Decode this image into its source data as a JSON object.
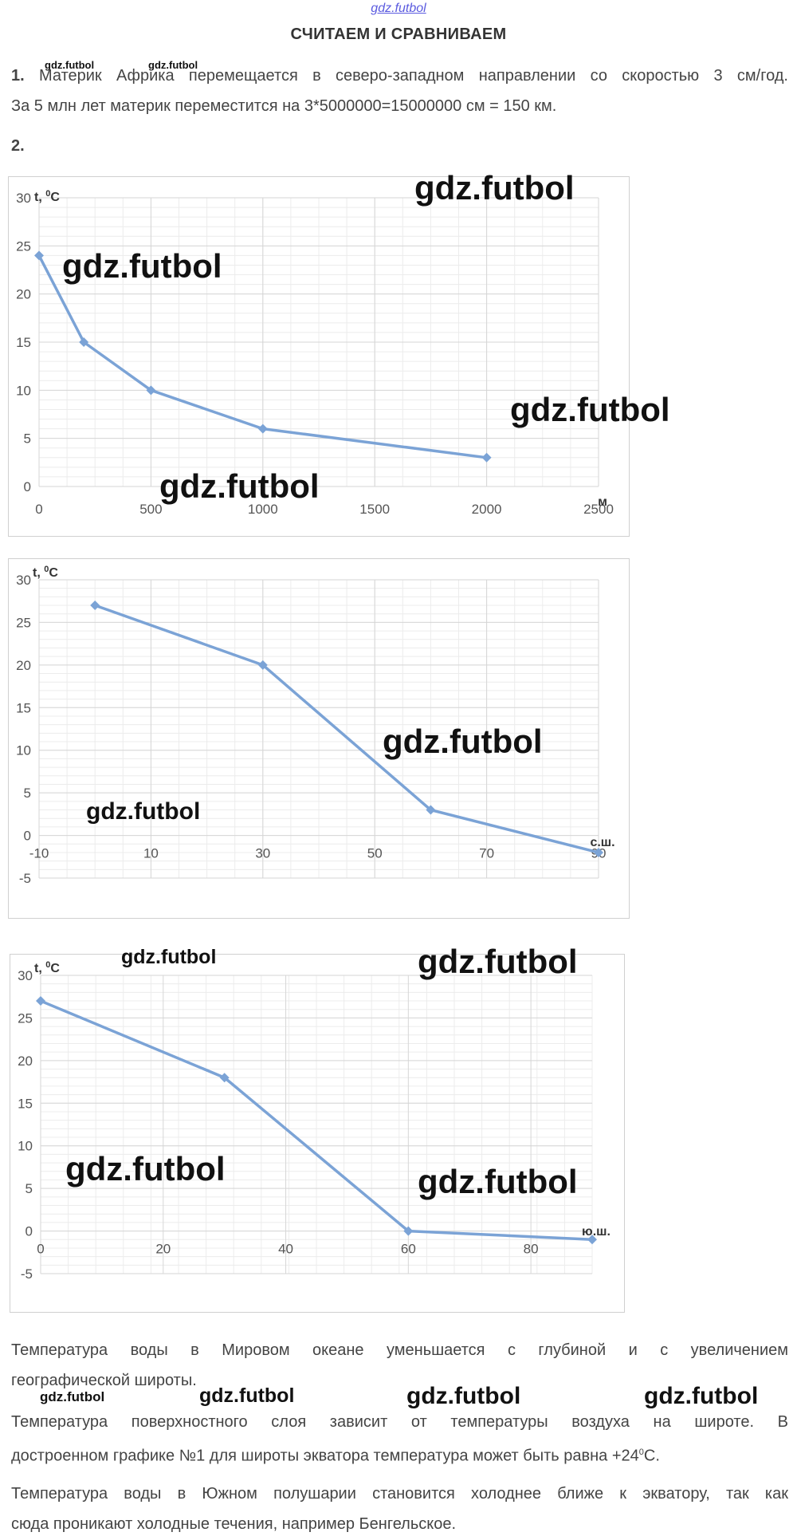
{
  "header": {
    "site_link": "gdz.futbol",
    "title": "СЧИТАЕМ И СРАВНИВАЕМ"
  },
  "task1": {
    "number": "1.",
    "line1": "Материк Африка перемещается в северо-западном направлении со скоростью 3 см/год.",
    "line2": "За 5 млн лет материк переместится на 3*5000000=15000000 см = 150 км."
  },
  "task2": {
    "number": "2."
  },
  "watermarks": {
    "text": "gdz.futbol"
  },
  "chart_data": [
    {
      "type": "line",
      "ylabel": "t, 0C",
      "xlabel": "м",
      "x": [
        0,
        200,
        500,
        1000,
        2000
      ],
      "y": [
        24,
        15,
        10,
        6,
        3
      ],
      "xlim": [
        0,
        2500
      ],
      "ylim": [
        0,
        30
      ],
      "xticks": [
        "0",
        "500",
        "1000",
        "1500",
        "2000",
        "2500"
      ],
      "yticks": [
        "0",
        "5",
        "10",
        "15",
        "20",
        "25",
        "30"
      ],
      "color": "#7ba3d6"
    },
    {
      "type": "line",
      "ylabel": "t, 0C",
      "xlabel": "с.ш.",
      "x": [
        0,
        30,
        60,
        90
      ],
      "y": [
        27,
        20,
        3,
        -2
      ],
      "xlim": [
        -10,
        90
      ],
      "ylim": [
        -5,
        30
      ],
      "xticks": [
        "-10",
        "10",
        "30",
        "50",
        "70",
        "90"
      ],
      "yticks": [
        "-5",
        "0",
        "5",
        "10",
        "15",
        "20",
        "25",
        "30"
      ],
      "color": "#7ba3d6"
    },
    {
      "type": "line",
      "ylabel": "t, 0C",
      "xlabel": "ю.ш.",
      "x": [
        0,
        30,
        60,
        90
      ],
      "y": [
        27,
        18,
        0,
        -1
      ],
      "xlim": [
        0,
        90
      ],
      "ylim": [
        -5,
        30
      ],
      "xticks": [
        "0",
        "20",
        "40",
        "60",
        "80"
      ],
      "yticks": [
        "-5",
        "0",
        "5",
        "10",
        "15",
        "20",
        "25",
        "30"
      ],
      "color": "#7ba3d6"
    }
  ],
  "conclusions": {
    "p1": "Температура воды в Мировом океане уменьшается с глубиной и с увеличением",
    "p1b": "географической широты.",
    "p2": "Температура поверхностного слоя зависит от температуры воздуха на широте. В",
    "p2b_pre": "достроенном графике №1 для широты экватора температура может быть равна +24",
    "p2b_sup": "0",
    "p2b_post": "С.",
    "p3": "Температура воды в Южном полушарии становится холоднее ближе к экватору, так как",
    "p3b": "сюда проникают холодные течения, например Бенгельское."
  }
}
